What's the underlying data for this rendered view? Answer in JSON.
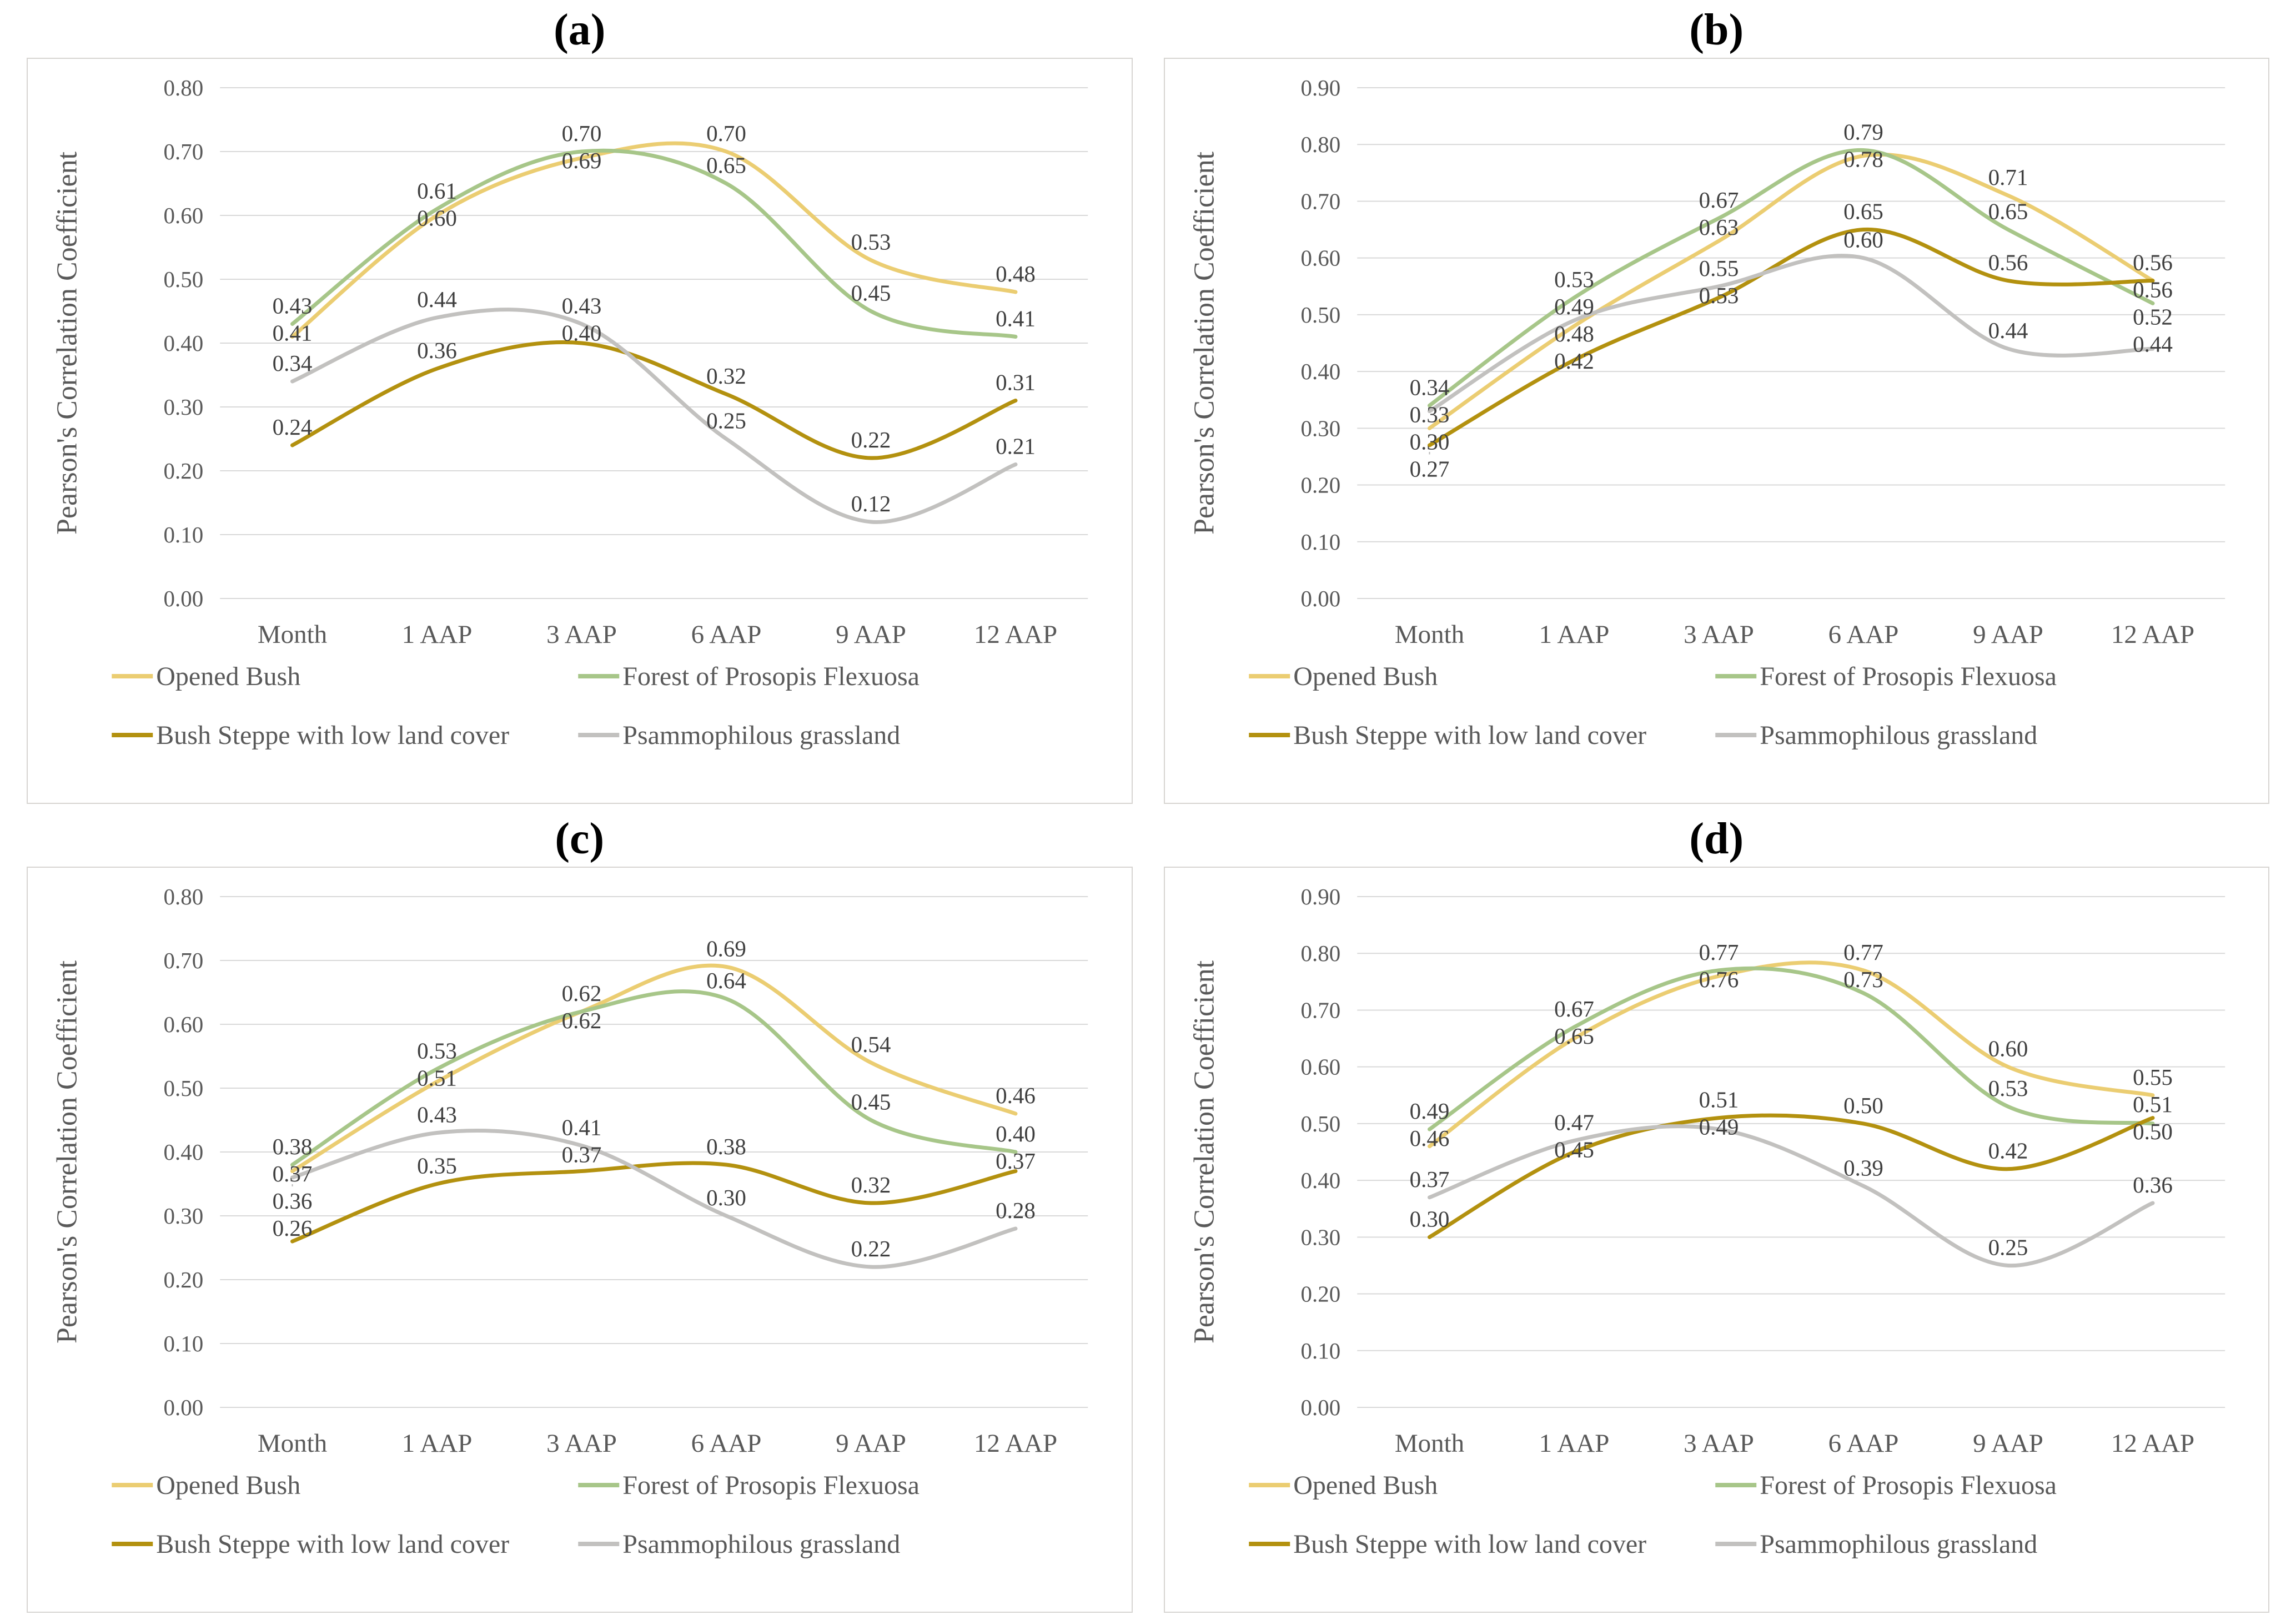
{
  "figure": {
    "y_axis_title": "Pearson's Correlation Coefficient",
    "categories": [
      "Month",
      "1 AAP",
      "3 AAP",
      "6 AAP",
      "9 AAP",
      "12 AAP"
    ],
    "legend_order": [
      "Opened Bush",
      "Forest of Prosopis Flexuosa",
      "Bush Steppe with low land cover",
      "Psammophilous grassland"
    ],
    "colors": {
      "opened_bush": "#ebcd72",
      "forest_of_prosopis_flexuosa": "#a7c689",
      "bush_steppe_with_low_land_cover": "#b3910f",
      "psammophilous_grassland": "#c2c1bf",
      "gridline": "#d9d9d9",
      "axis_text": "#595959",
      "data_label_text": "#404040"
    }
  },
  "chart_data": [
    {
      "type": "line",
      "title": "(a)",
      "xlabel": "",
      "ylabel": "Pearson's Correlation Coefficient",
      "ylim": [
        0,
        0.8
      ],
      "ytick_step": 0.1,
      "grid": true,
      "legend_position": "bottom",
      "categories": [
        "Month",
        "1 AAP",
        "3 AAP",
        "6 AAP",
        "9 AAP",
        "12 AAP"
      ],
      "series": [
        {
          "name": "Opened Bush",
          "color": "#ebcd72",
          "values": [
            0.41,
            0.6,
            0.69,
            0.7,
            0.53,
            0.48
          ]
        },
        {
          "name": "Forest of Prosopis Flexuosa",
          "color": "#a7c689",
          "values": [
            0.43,
            0.61,
            0.7,
            0.65,
            0.45,
            0.41
          ]
        },
        {
          "name": "Bush Steppe with low land cover",
          "color": "#b3910f",
          "values": [
            0.24,
            0.36,
            0.4,
            0.32,
            0.22,
            0.31
          ]
        },
        {
          "name": "Psammophilous grassland",
          "color": "#c2c1bf",
          "values": [
            0.34,
            0.44,
            0.43,
            0.25,
            0.12,
            0.21
          ]
        }
      ]
    },
    {
      "type": "line",
      "title": "(b)",
      "xlabel": "",
      "ylabel": "Pearson's Correlation Coefficient",
      "ylim": [
        0,
        0.9
      ],
      "ytick_step": 0.1,
      "grid": true,
      "legend_position": "bottom",
      "categories": [
        "Month",
        "1 AAP",
        "3 AAP",
        "6 AAP",
        "9 AAP",
        "12 AAP"
      ],
      "series": [
        {
          "name": "Opened Bush",
          "color": "#ebcd72",
          "values": [
            0.3,
            0.48,
            0.63,
            0.78,
            0.71,
            0.56
          ]
        },
        {
          "name": "Forest of Prosopis Flexuosa",
          "color": "#a7c689",
          "values": [
            0.34,
            0.53,
            0.67,
            0.79,
            0.65,
            0.52
          ]
        },
        {
          "name": "Bush Steppe with low land cover",
          "color": "#b3910f",
          "values": [
            0.27,
            0.42,
            0.53,
            0.65,
            0.56,
            0.56
          ]
        },
        {
          "name": "Psammophilous grassland",
          "color": "#c2c1bf",
          "values": [
            0.33,
            0.49,
            0.55,
            0.6,
            0.44,
            0.44
          ]
        }
      ]
    },
    {
      "type": "line",
      "title": "(c)",
      "xlabel": "",
      "ylabel": "Pearson's Correlation Coefficient",
      "ylim": [
        0,
        0.8
      ],
      "ytick_step": 0.1,
      "grid": true,
      "legend_position": "bottom",
      "categories": [
        "Month",
        "1 AAP",
        "3 AAP",
        "6 AAP",
        "9 AAP",
        "12 AAP"
      ],
      "series": [
        {
          "name": "Opened Bush",
          "color": "#ebcd72",
          "values": [
            0.37,
            0.51,
            0.62,
            0.69,
            0.54,
            0.46
          ]
        },
        {
          "name": "Forest of Prosopis Flexuosa",
          "color": "#a7c689",
          "values": [
            0.38,
            0.53,
            0.62,
            0.64,
            0.45,
            0.4
          ]
        },
        {
          "name": "Bush Steppe with low land cover",
          "color": "#b3910f",
          "values": [
            0.26,
            0.35,
            0.37,
            0.38,
            0.32,
            0.37
          ]
        },
        {
          "name": "Psammophilous grassland",
          "color": "#c2c1bf",
          "values": [
            0.36,
            0.43,
            0.41,
            0.3,
            0.22,
            0.28
          ]
        }
      ]
    },
    {
      "type": "line",
      "title": "(d)",
      "xlabel": "",
      "ylabel": "Pearson's Correlation Coefficient",
      "ylim": [
        0,
        0.9
      ],
      "ytick_step": 0.1,
      "grid": true,
      "legend_position": "bottom",
      "categories": [
        "Month",
        "1 AAP",
        "3 AAP",
        "6 AAP",
        "9 AAP",
        "12 AAP"
      ],
      "series": [
        {
          "name": "Opened Bush",
          "color": "#ebcd72",
          "values": [
            0.46,
            0.65,
            0.76,
            0.77,
            0.6,
            0.55
          ]
        },
        {
          "name": "Forest of Prosopis Flexuosa",
          "color": "#a7c689",
          "values": [
            0.49,
            0.67,
            0.77,
            0.73,
            0.53,
            0.5
          ]
        },
        {
          "name": "Bush Steppe with low land cover",
          "color": "#b3910f",
          "values": [
            0.3,
            0.45,
            0.51,
            0.5,
            0.42,
            0.51
          ]
        },
        {
          "name": "Psammophilous grassland",
          "color": "#c2c1bf",
          "values": [
            0.37,
            0.47,
            0.49,
            0.39,
            0.25,
            0.36
          ]
        }
      ]
    }
  ]
}
